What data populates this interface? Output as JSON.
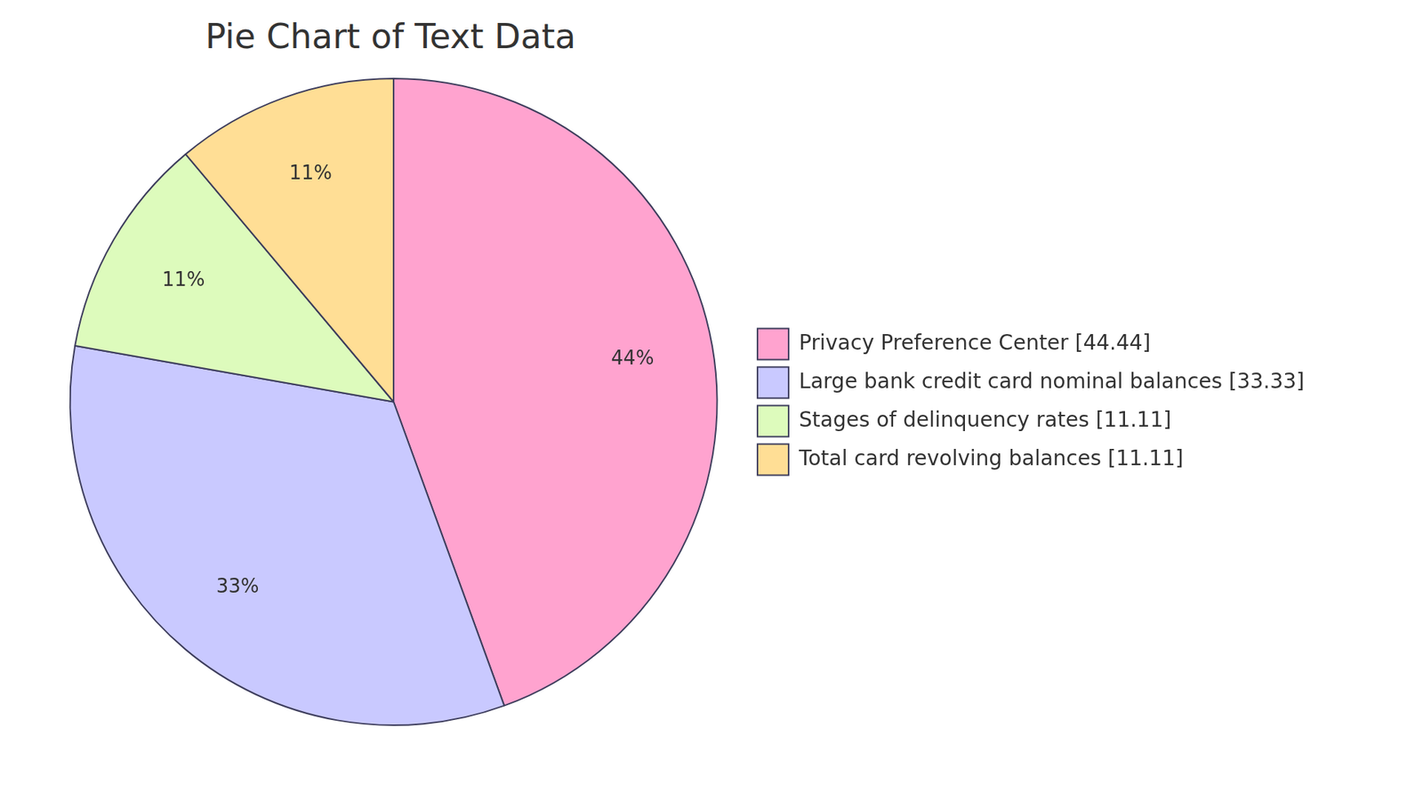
{
  "chart_data": {
    "type": "pie",
    "title": "Pie Chart of Text Data",
    "categories": [
      "Privacy Preference Center [44.44]",
      "Large bank credit card nominal balances [33.33]",
      "Stages of delinquency rates [11.11]",
      "Total card revolving balances [11.11]"
    ],
    "values": [
      44.44,
      33.33,
      11.11,
      11.11
    ],
    "value_labels": [
      "44%",
      "33%",
      "11%",
      "11%"
    ],
    "data_labels": true,
    "colors": [
      "#ffa3cf",
      "#c9c9ff",
      "#ddfbbc",
      "#ffde95"
    ],
    "legend": "right"
  }
}
